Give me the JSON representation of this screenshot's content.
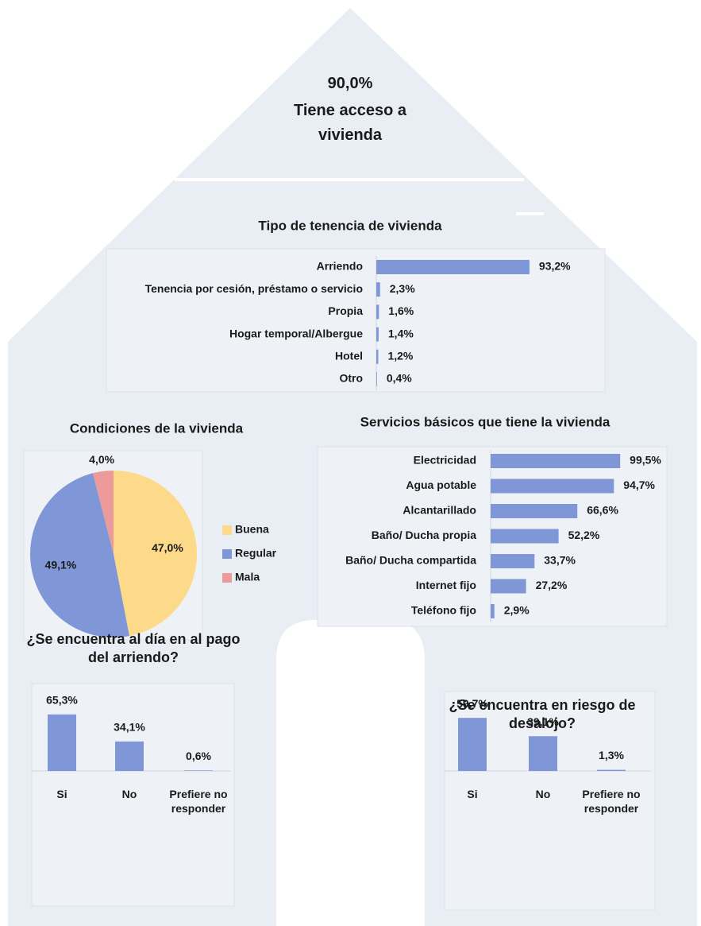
{
  "headline": {
    "figure": "90,0%",
    "text": "Tiene acceso a vivienda"
  },
  "chart_data": [
    {
      "type": "bar",
      "orientation": "horizontal",
      "title": "Tipo de tenencia de vivienda",
      "color": "#7f97d6",
      "categories": [
        "Arriendo",
        "Tenencia por cesión, préstamo o servicio",
        "Propia",
        "Hogar temporal/Albergue",
        "Hotel",
        "Otro"
      ],
      "values": [
        93.2,
        2.3,
        1.6,
        1.4,
        1.2,
        0.4
      ],
      "value_labels": [
        "93,2%",
        "2,3%",
        "1,6%",
        "1,4%",
        "1,2%",
        "0,4%"
      ]
    },
    {
      "type": "pie",
      "title": "Condiciones de la vivienda",
      "legend": "right",
      "categories": [
        "Buena",
        "Regular",
        "Mala"
      ],
      "values": [
        47.0,
        49.1,
        4.0
      ],
      "value_labels": [
        "47,0%",
        "49,1%",
        "4,0%"
      ],
      "colors": [
        "#fdd98a",
        "#7f97d6",
        "#ec9a9a"
      ]
    },
    {
      "type": "bar",
      "orientation": "horizontal",
      "title": "Servicios básicos que tiene la vivienda",
      "color": "#7f97d6",
      "categories": [
        "Electricidad",
        "Agua potable",
        "Alcantarillado",
        "Baño/ Ducha propia",
        "Baño/ Ducha compartida",
        "Internet fijo",
        "Teléfono fijo"
      ],
      "values": [
        99.5,
        94.7,
        66.6,
        52.2,
        33.7,
        27.2,
        2.9
      ],
      "value_labels": [
        "99,5%",
        "94,7%",
        "66,6%",
        "52,2%",
        "33,7%",
        "27,2%",
        "2,9%"
      ]
    },
    {
      "type": "bar",
      "orientation": "vertical",
      "title": "¿Se encuentra al día en al pago del arriendo?",
      "color": "#7f97d6",
      "categories": [
        "Si",
        "No",
        "Prefiere no responder"
      ],
      "values": [
        65.3,
        34.1,
        0.6
      ],
      "value_labels": [
        "65,3%",
        "34,1%",
        "0,6%"
      ]
    },
    {
      "type": "bar",
      "orientation": "vertical",
      "title": "¿Se encuentra en riesgo de desalojo?",
      "color": "#7f97d6",
      "categories": [
        "Si",
        "No",
        "Prefiere no responder"
      ],
      "values": [
        59.7,
        39.1,
        1.3
      ],
      "value_labels": [
        "59,7%",
        "39,1%",
        "1,3%"
      ]
    }
  ]
}
